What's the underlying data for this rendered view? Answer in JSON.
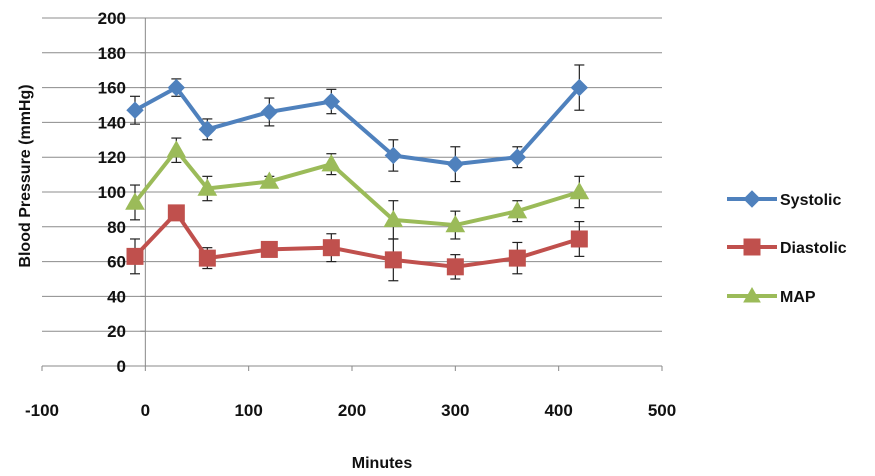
{
  "chart_data": {
    "type": "line",
    "title": "",
    "xlabel": "Minutes",
    "ylabel": "Blood Pressure (mmHg)",
    "xlim": [
      -100,
      500
    ],
    "ylim": [
      0,
      200
    ],
    "xticks": [
      -100,
      0,
      100,
      200,
      300,
      400,
      500
    ],
    "yticks": [
      0,
      20,
      40,
      60,
      80,
      100,
      120,
      140,
      160,
      180,
      200
    ],
    "grid": "horizontal",
    "legend_position": "right",
    "x": [
      -10,
      30,
      60,
      120,
      180,
      240,
      300,
      360,
      420
    ],
    "series": [
      {
        "name": "Systolic",
        "color": "#4F81BD",
        "marker": "diamond",
        "values": [
          147,
          160,
          136,
          146,
          152,
          121,
          116,
          120,
          160
        ],
        "errors": [
          8,
          5,
          6,
          8,
          7,
          9,
          10,
          6,
          13
        ]
      },
      {
        "name": "Diastolic",
        "color": "#C0504D",
        "marker": "square",
        "values": [
          63,
          88,
          62,
          67,
          68,
          61,
          57,
          62,
          73
        ],
        "errors": [
          10,
          3,
          6,
          4,
          8,
          12,
          7,
          9,
          10
        ]
      },
      {
        "name": "MAP",
        "color": "#9BBB59",
        "marker": "triangle",
        "values": [
          94,
          124,
          102,
          106,
          116,
          84,
          81,
          89,
          100
        ],
        "errors": [
          10,
          7,
          7,
          3,
          6,
          11,
          8,
          6,
          9
        ]
      }
    ]
  }
}
